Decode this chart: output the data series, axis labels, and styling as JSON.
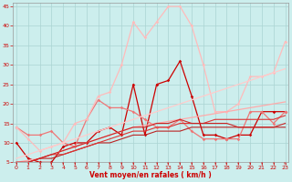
{
  "xlabel": "Vent moyen/en rafales ( km/h )",
  "xlim": [
    -0.3,
    23.3
  ],
  "ylim": [
    5,
    46
  ],
  "xticks": [
    0,
    1,
    2,
    3,
    4,
    5,
    6,
    7,
    8,
    9,
    10,
    11,
    12,
    13,
    14,
    15,
    16,
    17,
    18,
    19,
    20,
    21,
    22,
    23
  ],
  "yticks": [
    5,
    10,
    15,
    20,
    25,
    30,
    35,
    40,
    45
  ],
  "background_color": "#cceeed",
  "grid_color": "#aad4d2",
  "lines": [
    {
      "x": [
        0,
        1,
        2,
        3,
        4,
        5,
        6,
        7,
        8,
        9,
        10,
        11,
        12,
        13,
        14,
        15,
        16,
        17,
        18,
        19,
        20,
        21,
        22,
        23
      ],
      "y": [
        10,
        6,
        5,
        5,
        9,
        10,
        10,
        13,
        14,
        12,
        25,
        12,
        25,
        26,
        31,
        22,
        12,
        12,
        11,
        12,
        12,
        18,
        18,
        18
      ],
      "color": "#cc0000",
      "marker": "D",
      "markersize": 1.8,
      "linewidth": 0.9
    },
    {
      "x": [
        0,
        1,
        2,
        3,
        4,
        5,
        6,
        7,
        8,
        9,
        10,
        11,
        12,
        13,
        14,
        15,
        16,
        17,
        18,
        19,
        20,
        21,
        22,
        23
      ],
      "y": [
        14,
        12,
        12,
        13,
        10,
        9,
        16,
        21,
        19,
        19,
        18,
        16,
        14,
        14,
        16,
        13,
        11,
        11,
        11,
        11,
        18,
        18,
        15,
        18
      ],
      "color": "#ee7777",
      "marker": "D",
      "markersize": 1.8,
      "linewidth": 0.9
    },
    {
      "x": [
        0,
        1,
        2,
        3,
        4,
        5,
        6,
        7,
        8,
        9,
        10,
        11,
        12,
        13,
        14,
        15,
        16,
        17,
        18,
        19,
        20,
        21,
        22,
        23
      ],
      "y": [
        14,
        11,
        8,
        9,
        10,
        15,
        16,
        22,
        23,
        30,
        41,
        37,
        41,
        45,
        45,
        40,
        30,
        18,
        18,
        20,
        27,
        27,
        28,
        36
      ],
      "color": "#ffbbbb",
      "marker": "D",
      "markersize": 1.8,
      "linewidth": 0.9
    },
    {
      "x": [
        0,
        1,
        2,
        3,
        4,
        5,
        6,
        7,
        8,
        9,
        10,
        11,
        12,
        13,
        14,
        15,
        16,
        17,
        18,
        19,
        20,
        21,
        22,
        23
      ],
      "y": [
        6,
        7,
        8,
        9,
        10,
        11,
        12,
        13,
        14,
        15,
        16,
        17,
        18,
        19,
        20,
        21,
        22,
        23,
        24,
        25,
        26,
        27,
        28,
        29
      ],
      "color": "#ffcccc",
      "marker": null,
      "linewidth": 0.9
    },
    {
      "x": [
        0,
        1,
        2,
        3,
        4,
        5,
        6,
        7,
        8,
        9,
        10,
        11,
        12,
        13,
        14,
        15,
        16,
        17,
        18,
        19,
        20,
        21,
        22,
        23
      ],
      "y": [
        5,
        5.5,
        6,
        7,
        8,
        9,
        10,
        11,
        12,
        13,
        14,
        14.5,
        15,
        15.5,
        16,
        16.5,
        17,
        17.5,
        18,
        18.5,
        19,
        19.5,
        20,
        20.5
      ],
      "color": "#ffaaaa",
      "marker": null,
      "linewidth": 0.9
    },
    {
      "x": [
        0,
        1,
        2,
        3,
        4,
        5,
        6,
        7,
        8,
        9,
        10,
        11,
        12,
        13,
        14,
        15,
        16,
        17,
        18,
        19,
        20,
        21,
        22,
        23
      ],
      "y": [
        5,
        5,
        6,
        6,
        7,
        8,
        9,
        10,
        10,
        11,
        12,
        12,
        13,
        13,
        13,
        14,
        14,
        14,
        14,
        14,
        14,
        14,
        14,
        14
      ],
      "color": "#bb2222",
      "marker": null,
      "linewidth": 0.8
    },
    {
      "x": [
        0,
        1,
        2,
        3,
        4,
        5,
        6,
        7,
        8,
        9,
        10,
        11,
        12,
        13,
        14,
        15,
        16,
        17,
        18,
        19,
        20,
        21,
        22,
        23
      ],
      "y": [
        5,
        5,
        6,
        7,
        7,
        8,
        9,
        10,
        11,
        12,
        13,
        13,
        14,
        14,
        15,
        15,
        15,
        16,
        16,
        16,
        16,
        16,
        16,
        17
      ],
      "color": "#dd3333",
      "marker": null,
      "linewidth": 0.8
    },
    {
      "x": [
        0,
        1,
        2,
        3,
        4,
        5,
        6,
        7,
        8,
        9,
        10,
        11,
        12,
        13,
        14,
        15,
        16,
        17,
        18,
        19,
        20,
        21,
        22,
        23
      ],
      "y": [
        5,
        5,
        6,
        7,
        8,
        9,
        10,
        11,
        12,
        13,
        14,
        14,
        15,
        15,
        16,
        15,
        15,
        15,
        15,
        14,
        14,
        14,
        14,
        15
      ],
      "color": "#cc2222",
      "marker": null,
      "linewidth": 0.8
    }
  ]
}
